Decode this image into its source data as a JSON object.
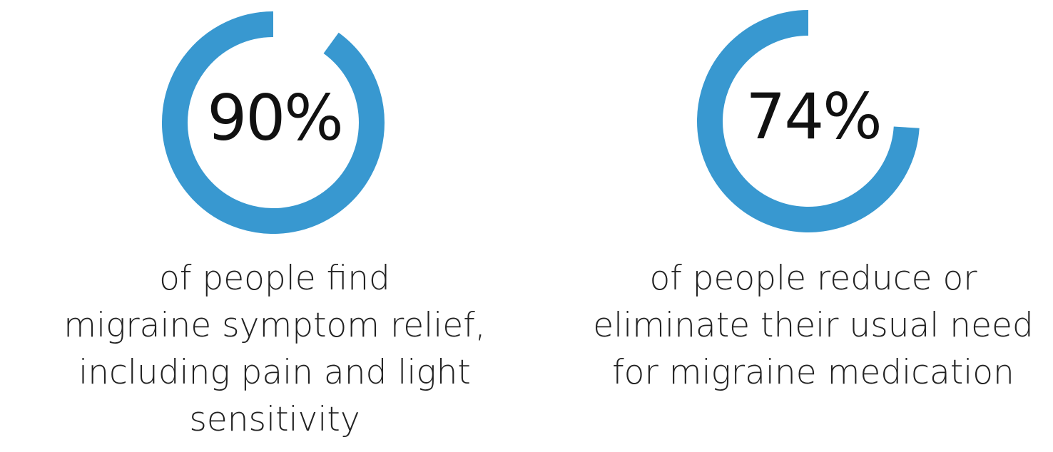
{
  "accent_color": "#3898d0",
  "stats": [
    {
      "value_label": "90%",
      "value": 90,
      "caption_lines": [
        "of people find",
        "migraine symptom relief,",
        "including pain and light",
        "sensitivity"
      ]
    },
    {
      "value_label": "74%",
      "value": 74,
      "caption_lines": [
        "of people reduce or",
        "eliminate their usual need",
        "for migraine medication"
      ]
    }
  ]
}
